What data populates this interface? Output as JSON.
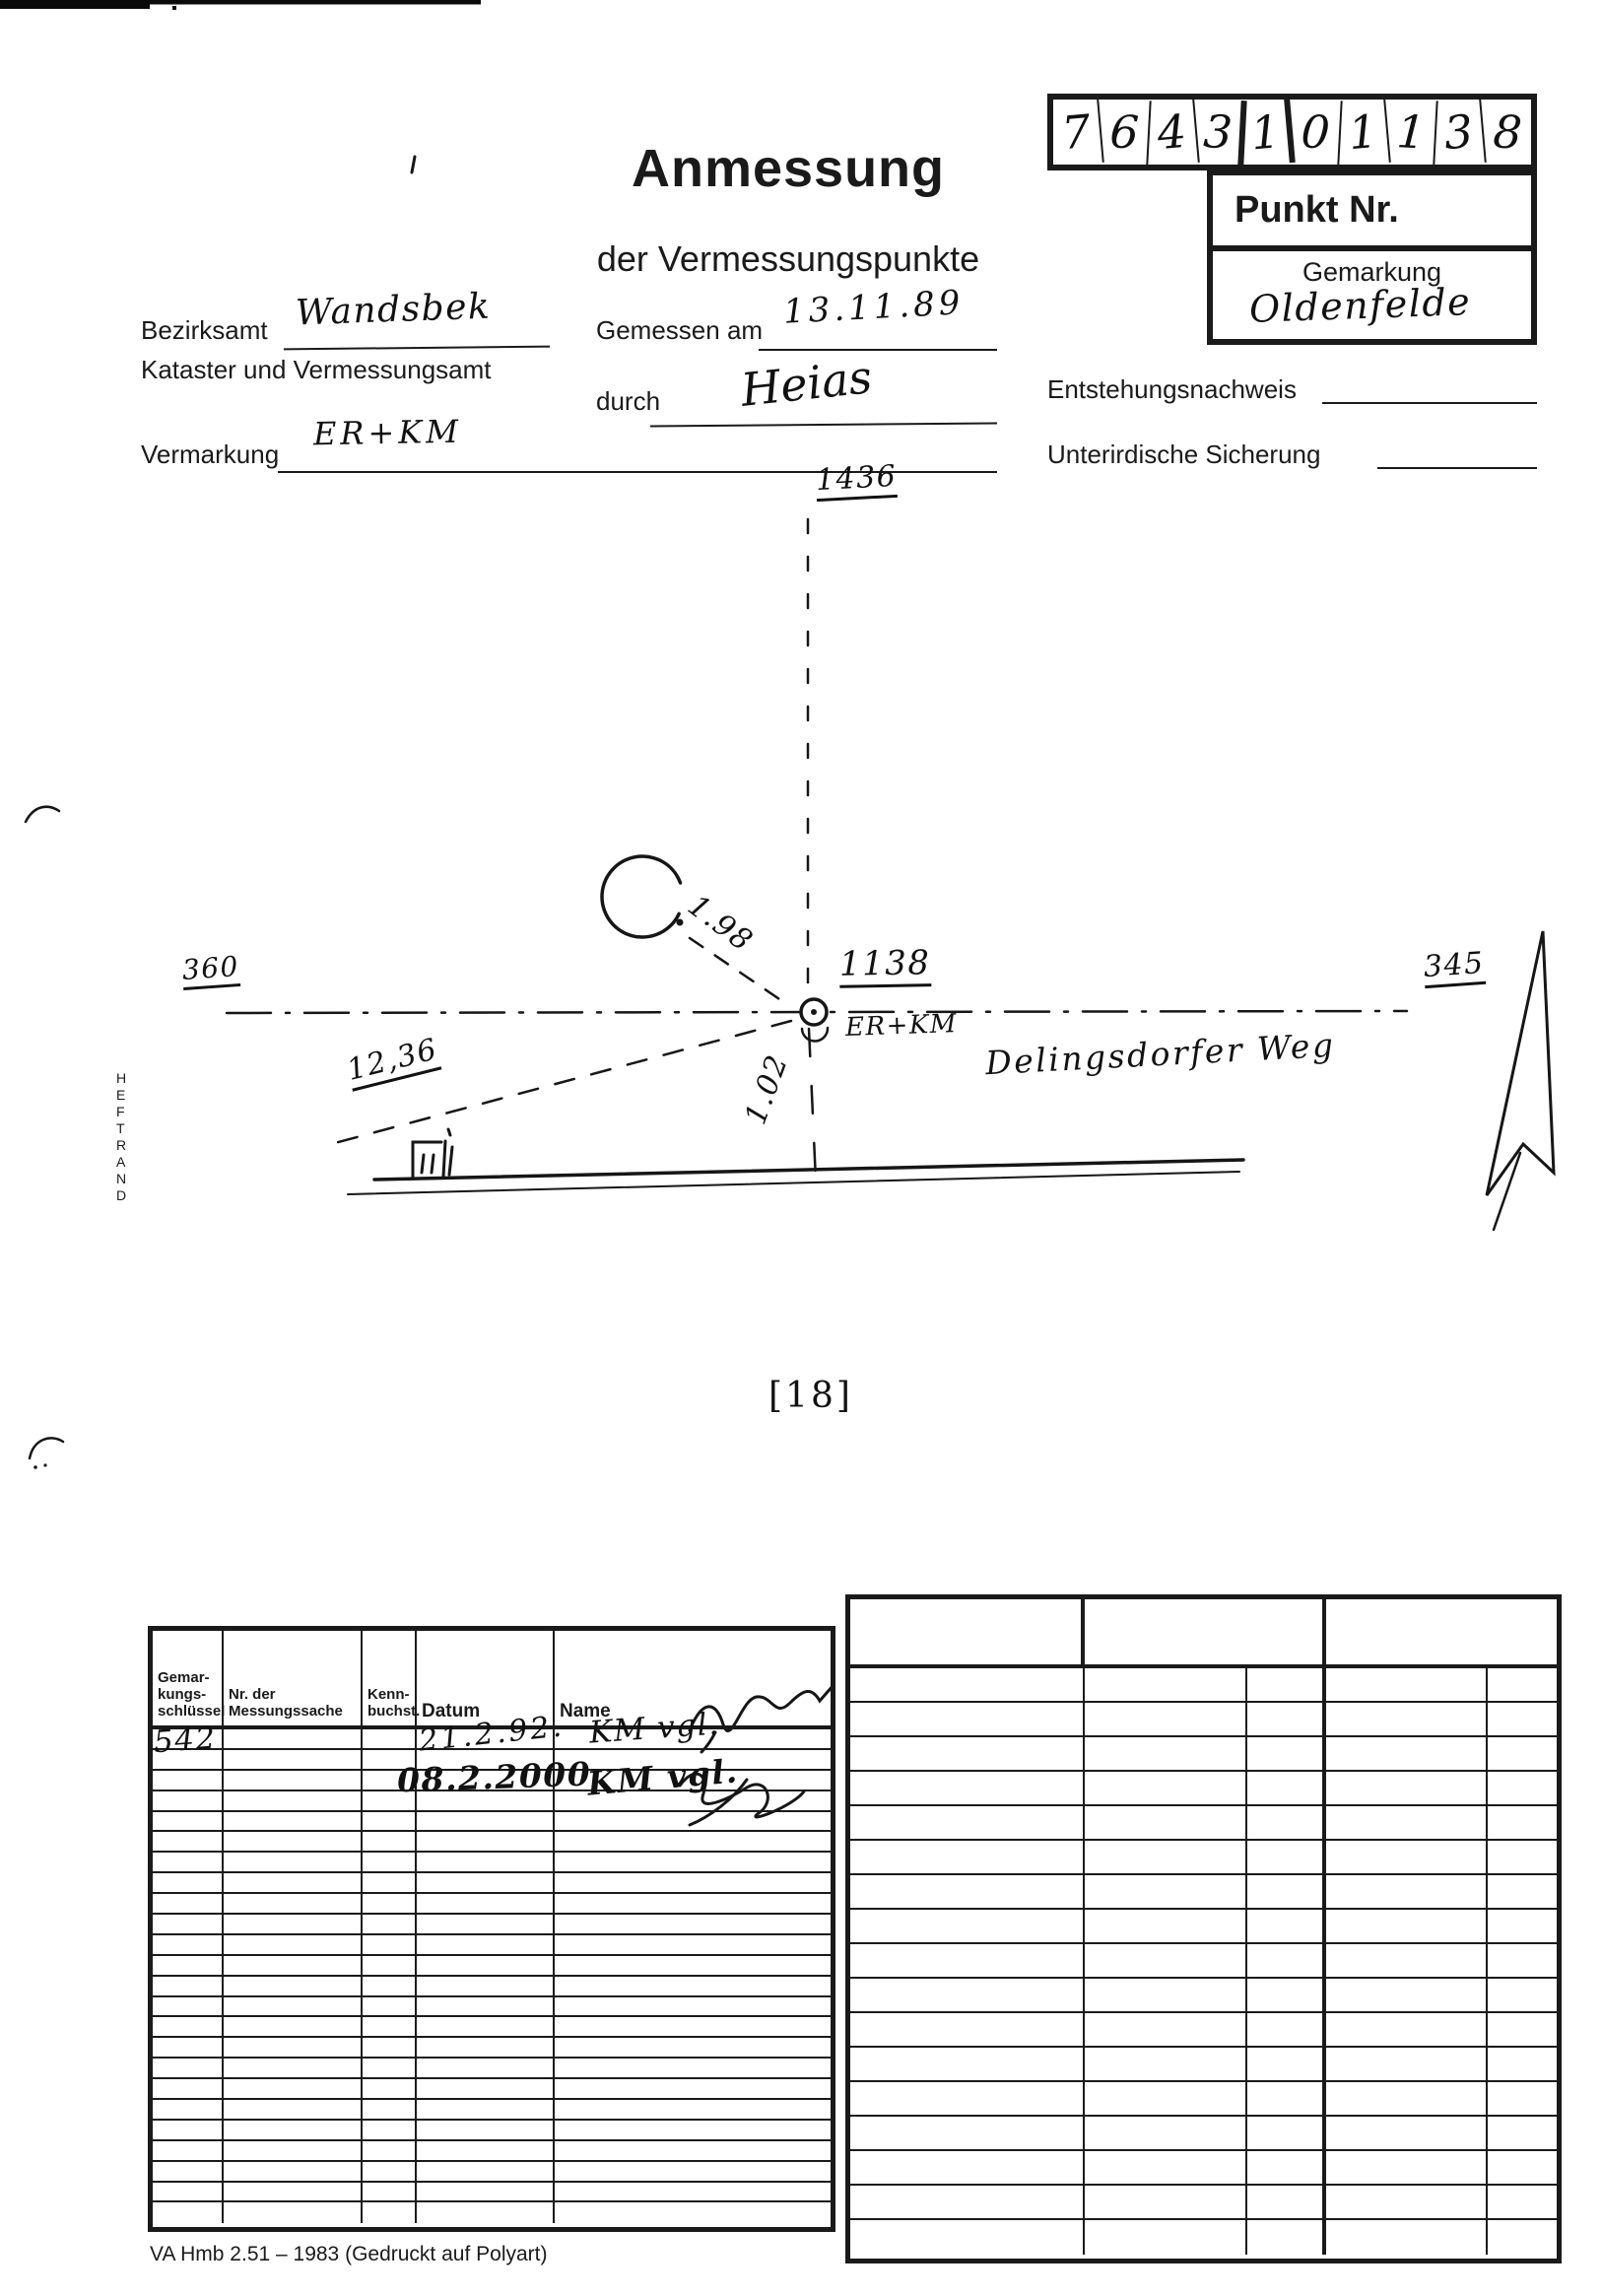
{
  "header": {
    "title": "Anmessung",
    "subtitle": "der Vermessungspunkte",
    "punkt_box": {
      "digits": [
        "7",
        "6",
        "4",
        "3",
        "1",
        "0",
        "1",
        "1",
        "3",
        "8"
      ],
      "punkt_nr_label": "Punkt Nr.",
      "gemarkung_label": "Gemarkung",
      "gemarkung_value": "Oldenfelde"
    },
    "fields": {
      "bezirksamt_label": "Bezirksamt",
      "bezirksamt_value": "Wandsbek",
      "kataster_label": "Kataster und Vermessungsamt",
      "gemessen_am_label": "Gemessen am",
      "gemessen_am_value": "13.11.89",
      "durch_label": "durch",
      "durch_value": "Heias",
      "entstehungsnachweis_label": "Entstehungsnachweis",
      "unterirdische_sicherung_label": "Unterirdische Sicherung",
      "vermarkung_label": "Vermarkung",
      "vermarkung_value": "ER+KM"
    }
  },
  "sketch": {
    "point_top": "1436",
    "point_left": "360",
    "point_right": "345",
    "point_number": "1138",
    "point_marking": "ER+KM",
    "distance_to_circle": "1.98",
    "distance_diagonal": "12,36",
    "distance_vertical": "1.02",
    "street_name": "Delingsdorfer Weg",
    "page_ref": "[18]"
  },
  "margin": {
    "heftrand": "HEFTRAND"
  },
  "history_table": {
    "headers": {
      "col1": [
        "Gemar-",
        "kungs-",
        "schlüssel"
      ],
      "col2": [
        "Nr. der",
        "Messungssache"
      ],
      "col3": [
        "Kenn-",
        "buchst."
      ],
      "col4": [
        "Datum"
      ],
      "col5": [
        "Name"
      ]
    },
    "entries": [
      {
        "gemarkungsschluessel": "542",
        "datum": "21.2.92.",
        "name": "KM vgl."
      },
      {
        "gemarkungsschluessel": "",
        "datum": "08.2.2000",
        "name": "KM vgl."
      }
    ],
    "left_empty_rows": 24,
    "right_rows": 17
  },
  "footer": {
    "form_code": "VA Hmb 2.51 – 1983 (Gedruckt auf Polyart)"
  }
}
